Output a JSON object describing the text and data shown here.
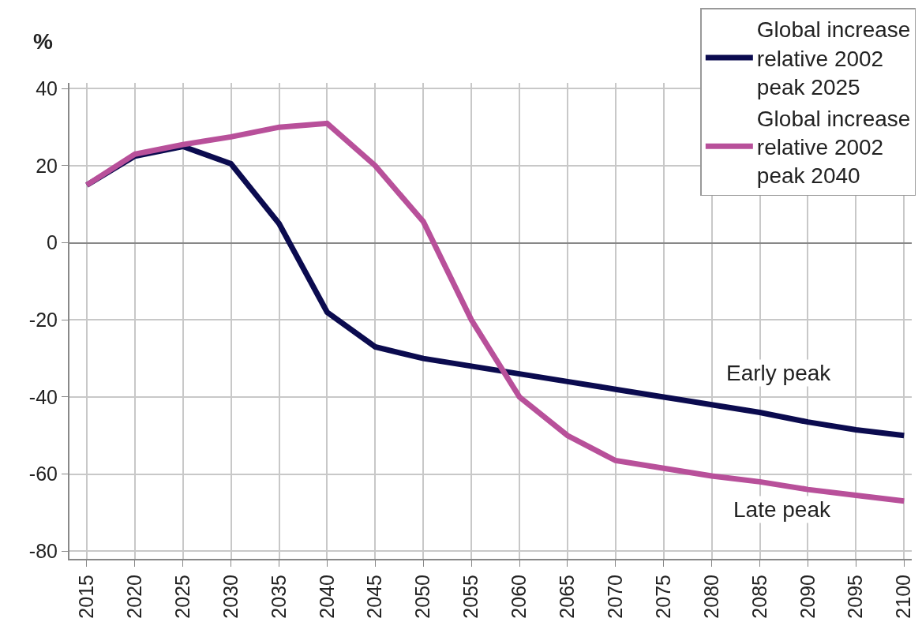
{
  "chart_data": {
    "type": "line",
    "ylabel": "%",
    "x": [
      2015,
      2020,
      2025,
      2030,
      2035,
      2040,
      2045,
      2050,
      2055,
      2060,
      2065,
      2070,
      2075,
      2080,
      2085,
      2090,
      2095,
      2100
    ],
    "series": [
      {
        "name": "Global increase\nrelative 2002\npeak 2025",
        "color": "#0b0b4f",
        "values": [
          15,
          22.5,
          25,
          20.5,
          5,
          -18,
          -27,
          -30,
          -32,
          -34,
          -36,
          -38,
          -40,
          -42,
          -44,
          -46.5,
          -48.5,
          -50
        ]
      },
      {
        "name": "Global increase\nrelative 2002\npeak 2040",
        "color": "#b8509a",
        "values": [
          15,
          23,
          25.5,
          27.5,
          30,
          31,
          20,
          5.5,
          -20,
          -40,
          -50,
          -56.5,
          -58.5,
          -60.5,
          -62,
          -64,
          -65.5,
          -67
        ]
      }
    ],
    "annotations": [
      "Early peak",
      "Late peak"
    ],
    "xlim": [
      2013.2,
      2100.8
    ],
    "xticks": [
      2015,
      2020,
      2025,
      2030,
      2035,
      2040,
      2045,
      2050,
      2055,
      2060,
      2065,
      2070,
      2075,
      2080,
      2085,
      2090,
      2095,
      2100
    ],
    "ylim": [
      -82,
      41.5
    ],
    "yticks": [
      -80,
      -60,
      -40,
      -20,
      0,
      20,
      40
    ],
    "grid": true,
    "legend": "top right",
    "marker": "none",
    "line_style": "solid"
  }
}
